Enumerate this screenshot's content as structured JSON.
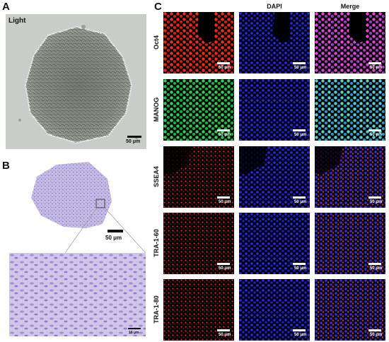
{
  "panels": {
    "a": {
      "letter": "A",
      "label": "Light",
      "scale_text": "50 μm"
    },
    "b": {
      "letter": "B",
      "scale_text": "50 μm",
      "inset_scale_text": "10 μm"
    },
    "c": {
      "letter": "C",
      "columns": [
        "",
        "DAPI",
        "Merge"
      ],
      "rows": [
        "Oct4",
        "MANOG",
        "SSEA4",
        "TRA-1-60",
        "TRA-1-80"
      ],
      "scale_text": "50 μm"
    }
  },
  "colors": {
    "red": "#ff2a1a",
    "green": "#22dd44",
    "blue": "#2a2aff",
    "magenta": "#ee44dd",
    "cyan": "#44ddcc",
    "purple": "#8f7fc9"
  }
}
